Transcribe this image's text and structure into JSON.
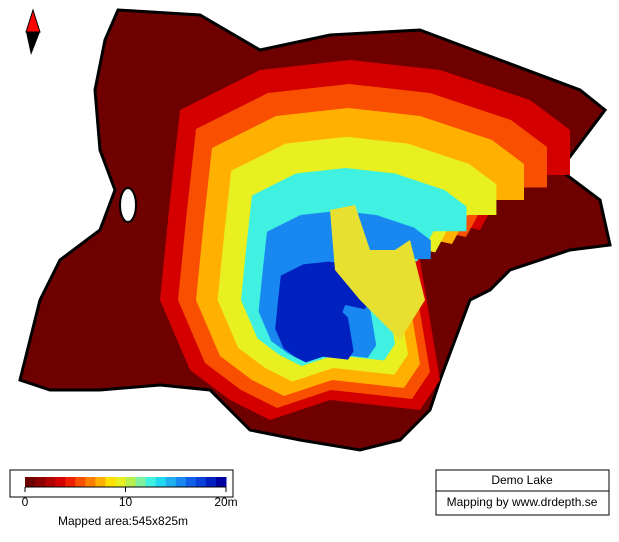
{
  "map": {
    "title": "Demo Lake",
    "credit": "Mapping by www.drdepth.se",
    "mapped_area": "Mapped area:545x825m"
  },
  "color_scale": {
    "range": [
      0,
      20
    ],
    "ticks": [
      0,
      10,
      {
        "value": 20,
        "label": "20m"
      }
    ],
    "colors": [
      "#6e0000",
      "#8c0000",
      "#b00000",
      "#d40000",
      "#ee2000",
      "#f85000",
      "#fc8000",
      "#ffb000",
      "#ffe000",
      "#e8f020",
      "#b8f050",
      "#80f0a0",
      "#40f0e0",
      "#20d8f0",
      "#20b0f0",
      "#1888f0",
      "#1060e8",
      "#0840d8",
      "#0020c0",
      "#0000a0"
    ]
  }
}
